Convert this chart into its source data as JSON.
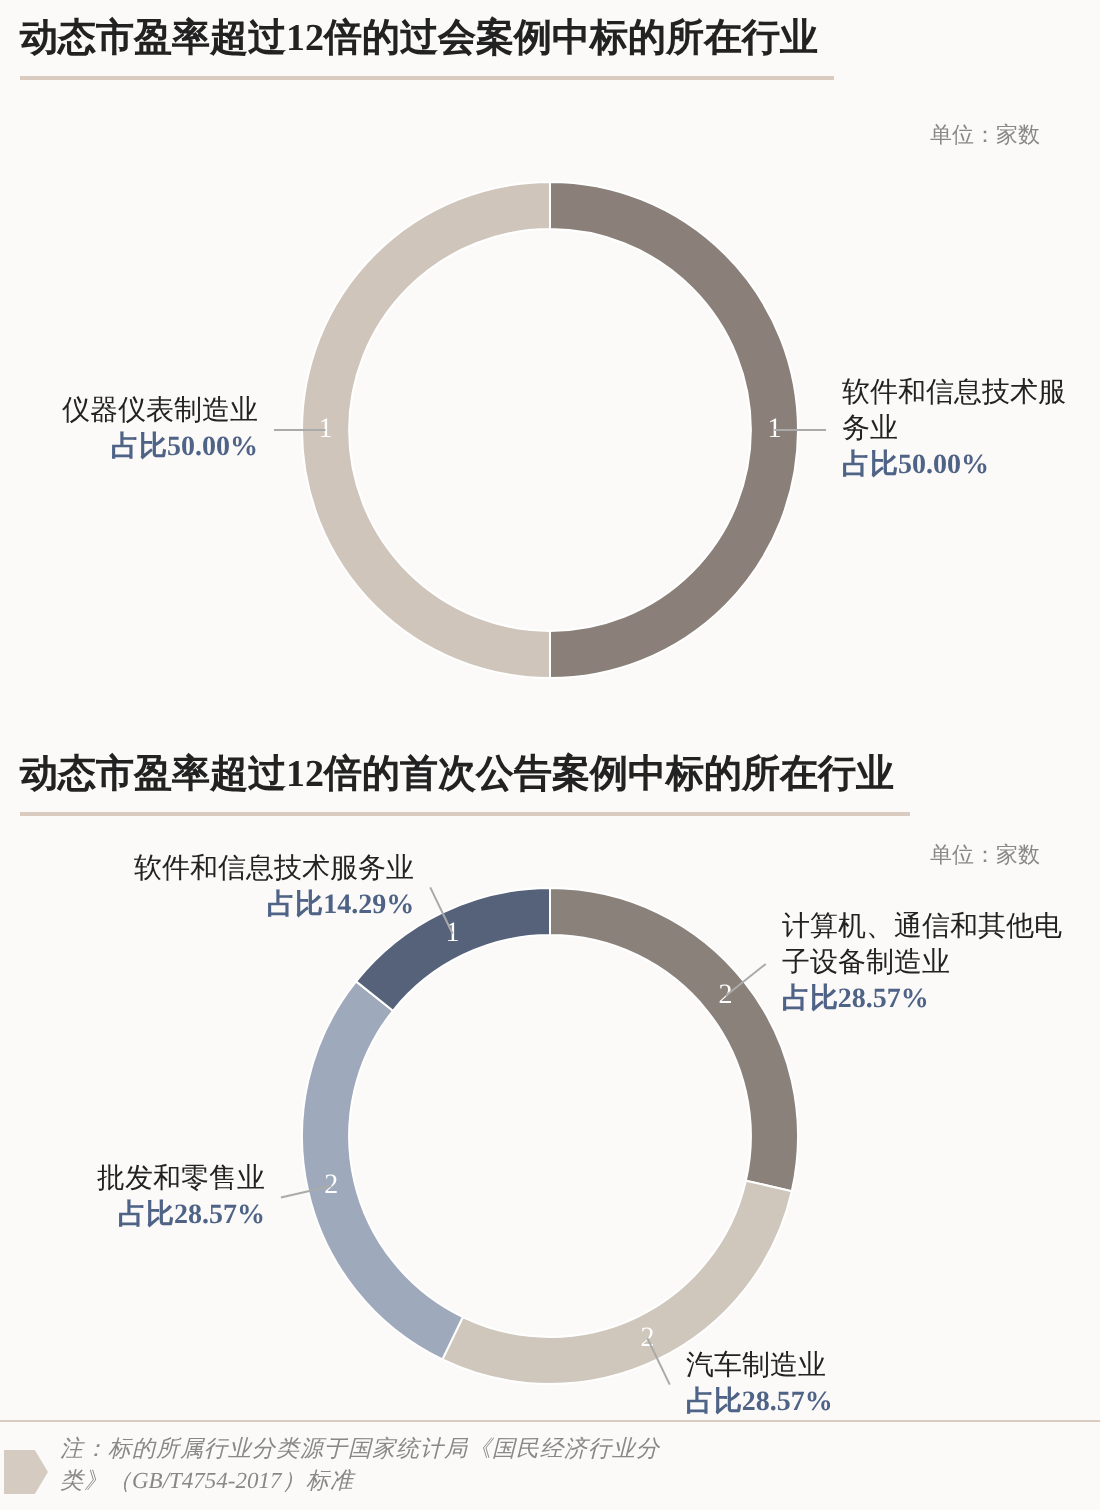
{
  "chart_data": [
    {
      "type": "donut",
      "title": "动态市盈率超过12倍的过会案例中标的所在行业",
      "subtitle": "单位：家数",
      "categories": [
        "软件和信息技术服务业",
        "仪器仪表制造业"
      ],
      "values": [
        1,
        1
      ],
      "colors": [
        "#8a7f79",
        "#cfc5bb"
      ],
      "data_labels": true,
      "annotations": [
        "占比50.00%",
        "占比50.00%"
      ]
    },
    {
      "type": "donut",
      "title": "动态市盈率超过12倍的首次公告案例中标的所在行业",
      "subtitle": "单位：家数",
      "categories": [
        "计算机、通信和其他电子设备制造业",
        "汽车制造业",
        "批发和零售业",
        "软件和信息技术服务业"
      ],
      "values": [
        2,
        2,
        2,
        1
      ],
      "colors": [
        "#8b817b",
        "#cfc6bc",
        "#9eaabb",
        "#56627a"
      ],
      "data_labels": true,
      "annotations": [
        "占比28.57%",
        "占比28.57%",
        "占比28.57%",
        "占比14.29%",
        "注：标的所属行业分类源于国家统计局《国民经济行业分类》（GB/T4754-2017）标准"
      ]
    }
  ]
}
